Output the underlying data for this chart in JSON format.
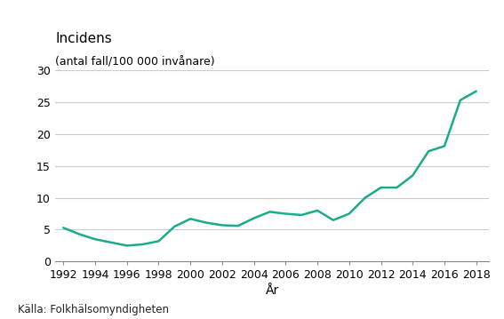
{
  "years": [
    1992,
    1993,
    1994,
    1995,
    1996,
    1997,
    1998,
    1999,
    2000,
    2001,
    2002,
    2003,
    2004,
    2005,
    2006,
    2007,
    2008,
    2009,
    2010,
    2011,
    2012,
    2013,
    2014,
    2015,
    2016,
    2017,
    2018
  ],
  "values": [
    5.3,
    4.3,
    3.5,
    3.0,
    2.5,
    2.7,
    3.2,
    5.5,
    6.7,
    6.1,
    5.7,
    5.6,
    6.8,
    7.8,
    7.5,
    7.3,
    8.0,
    6.5,
    7.5,
    10.0,
    11.6,
    11.6,
    13.5,
    17.3,
    18.1,
    25.3,
    26.7
  ],
  "line_color": "#1aab8a",
  "line_width": 1.8,
  "ylabel_line1": "Incidens",
  "ylabel_line2": "(antal fall/100 000 invånare)",
  "xlabel": "År",
  "source": "Källa: Folkhälsomyndigheten",
  "yticks": [
    0,
    5,
    10,
    15,
    20,
    25,
    30
  ],
  "xticks": [
    1992,
    1994,
    1996,
    1998,
    2000,
    2002,
    2004,
    2006,
    2008,
    2010,
    2012,
    2014,
    2016,
    2018
  ],
  "xlim": [
    1991.5,
    2018.8
  ],
  "ylim": [
    0,
    30
  ],
  "background_color": "#ffffff",
  "grid_color": "#cccccc",
  "title_fontsize": 11,
  "axis_fontsize": 9,
  "source_fontsize": 8.5,
  "xlabel_fontsize": 10
}
